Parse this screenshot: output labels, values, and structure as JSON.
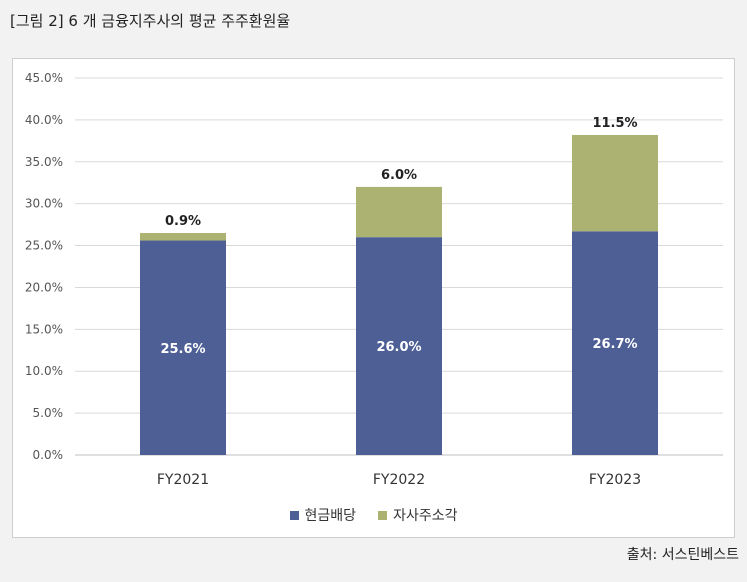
{
  "figure": {
    "title": "[그림 2] 6 개 금융지주사의 평균 주주환원율",
    "source": "출처: 서스틴베스트"
  },
  "chart_data": {
    "type": "bar",
    "stacked": true,
    "categories": [
      "FY2021",
      "FY2022",
      "FY2023"
    ],
    "series": [
      {
        "name": "현금배당",
        "values": [
          25.6,
          26.0,
          26.7
        ],
        "labels": [
          "25.6%",
          "26.0%",
          "26.7%"
        ],
        "color": "#4e5f96"
      },
      {
        "name": "자사주소각",
        "values": [
          0.9,
          6.0,
          11.5
        ],
        "labels": [
          "0.9%",
          "6.0%",
          "11.5%"
        ],
        "color": "#abb272"
      }
    ],
    "ylim": [
      0,
      45
    ],
    "yticks": [
      "0.0%",
      "5.0%",
      "10.0%",
      "15.0%",
      "20.0%",
      "25.0%",
      "30.0%",
      "35.0%",
      "40.0%",
      "45.0%"
    ],
    "grid": true,
    "legend_position": "bottom"
  }
}
